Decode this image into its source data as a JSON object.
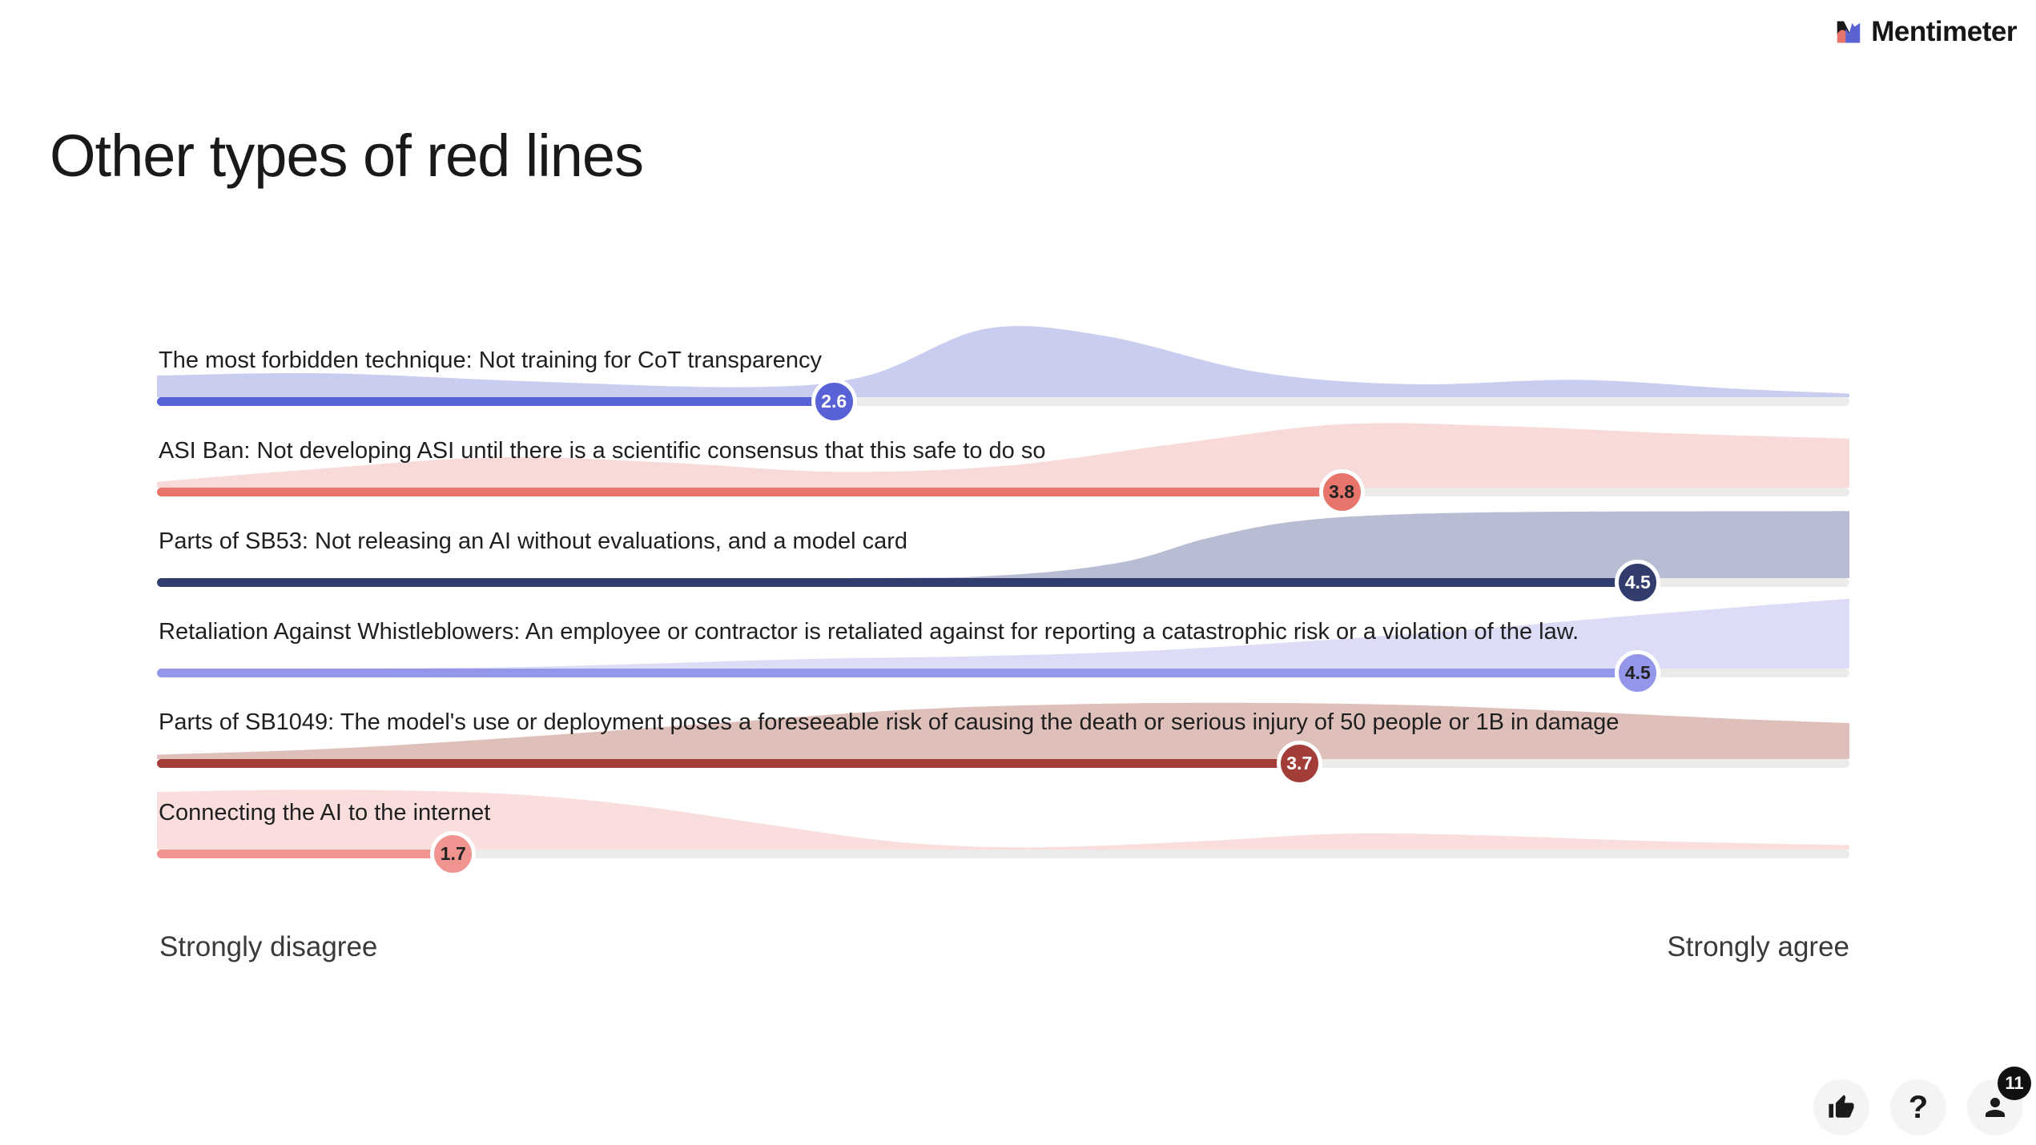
{
  "brand": {
    "name": "Mentimeter"
  },
  "page": {
    "title": "Other types of red lines"
  },
  "chart_data": {
    "type": "area",
    "title": "Other types of red lines",
    "x_range": [
      1,
      5
    ],
    "x_min_label": "Strongly disagree",
    "x_max_label": "Strongly agree",
    "track_color": "#ebebea",
    "items": [
      {
        "label": "The most forbidden technique: Not training for CoT transparency",
        "average": "2.6",
        "color": "#5861d6",
        "density_color": "#c9cdef",
        "badge_text_color": "#ffffff",
        "density_profile": [
          [
            0,
            0.3
          ],
          [
            0.1,
            0.33
          ],
          [
            0.22,
            0.22
          ],
          [
            0.35,
            0.14
          ],
          [
            0.42,
            0.3
          ],
          [
            0.49,
            0.95
          ],
          [
            0.56,
            0.85
          ],
          [
            0.65,
            0.35
          ],
          [
            0.74,
            0.18
          ],
          [
            0.84,
            0.24
          ],
          [
            0.93,
            0.12
          ],
          [
            1,
            0.05
          ]
        ]
      },
      {
        "label": "ASI Ban: Not developing ASI until there is a scientific consensus that this safe to do so",
        "average": "3.8",
        "color": "#e8756c",
        "density_color": "#f8dad9",
        "badge_text_color": "#222222",
        "density_profile": [
          [
            0,
            0.08
          ],
          [
            0.09,
            0.25
          ],
          [
            0.2,
            0.42
          ],
          [
            0.3,
            0.35
          ],
          [
            0.4,
            0.22
          ],
          [
            0.5,
            0.3
          ],
          [
            0.6,
            0.6
          ],
          [
            0.7,
            0.88
          ],
          [
            0.8,
            0.85
          ],
          [
            0.9,
            0.75
          ],
          [
            1,
            0.68
          ]
        ]
      },
      {
        "label": "Parts of SB53: Not releasing an AI without evaluations, and a model card",
        "average": "4.5",
        "color": "#323c6d",
        "density_color": "#b9bdd3",
        "badge_text_color": "#ffffff",
        "density_profile": [
          [
            0,
            0.0
          ],
          [
            0.4,
            0.0
          ],
          [
            0.5,
            0.04
          ],
          [
            0.57,
            0.22
          ],
          [
            0.62,
            0.55
          ],
          [
            0.67,
            0.78
          ],
          [
            0.73,
            0.88
          ],
          [
            0.82,
            0.92
          ],
          [
            1,
            0.93
          ]
        ]
      },
      {
        "label": "Retaliation Against Whistleblowers: An employee or contractor is retaliated against for reporting a catastrophic risk or a violation of the law.",
        "average": "4.5",
        "color": "#9496ea",
        "density_color": "#dcdcf7",
        "badge_text_color": "#222222",
        "density_profile": [
          [
            0,
            0.0
          ],
          [
            0.18,
            0.01
          ],
          [
            0.28,
            0.06
          ],
          [
            0.38,
            0.13
          ],
          [
            0.48,
            0.17
          ],
          [
            0.58,
            0.24
          ],
          [
            0.68,
            0.38
          ],
          [
            0.78,
            0.55
          ],
          [
            0.88,
            0.75
          ],
          [
            1,
            0.97
          ]
        ]
      },
      {
        "label": "Parts of SB1049: The model's use or deployment poses a foreseeable risk of causing the death or serious injury of 50 people or 1B in damage",
        "average": "3.7",
        "color": "#a23e37",
        "density_color": "#debfba",
        "badge_text_color": "#ffffff",
        "density_profile": [
          [
            0,
            0.06
          ],
          [
            0.1,
            0.14
          ],
          [
            0.2,
            0.28
          ],
          [
            0.32,
            0.48
          ],
          [
            0.44,
            0.68
          ],
          [
            0.54,
            0.76
          ],
          [
            0.64,
            0.78
          ],
          [
            0.74,
            0.75
          ],
          [
            0.84,
            0.66
          ],
          [
            0.93,
            0.56
          ],
          [
            1,
            0.5
          ]
        ]
      },
      {
        "label": "Connecting the AI to the internet",
        "average": "1.7",
        "color": "#f0948f",
        "density_color": "#f9dedd",
        "badge_text_color": "#222222",
        "density_profile": [
          [
            0,
            0.8
          ],
          [
            0.1,
            0.83
          ],
          [
            0.2,
            0.78
          ],
          [
            0.28,
            0.62
          ],
          [
            0.36,
            0.35
          ],
          [
            0.44,
            0.1
          ],
          [
            0.52,
            0.03
          ],
          [
            0.62,
            0.12
          ],
          [
            0.7,
            0.22
          ],
          [
            0.78,
            0.2
          ],
          [
            0.88,
            0.12
          ],
          [
            1,
            0.06
          ]
        ]
      }
    ]
  },
  "footer": {
    "help_label": "?",
    "participants_count": "11"
  }
}
